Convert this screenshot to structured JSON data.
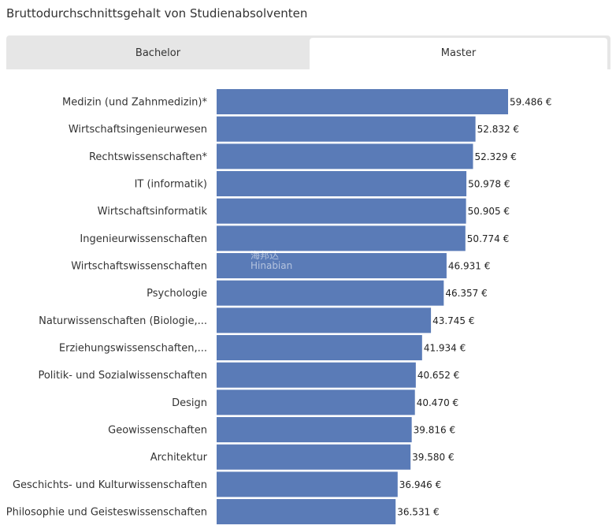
{
  "title": "Bruttodurchschnittsgehalt von Studienabsolventen",
  "tabs": [
    {
      "label": "Bachelor",
      "active": false
    },
    {
      "label": "Master",
      "active": true
    }
  ],
  "watermark": {
    "cn": "海邦达",
    "en": "Hinabian"
  },
  "colors": {
    "bar": "#5a7bb7"
  },
  "chart_data": {
    "type": "bar",
    "orientation": "horizontal",
    "title": "Bruttodurchschnittsgehalt von Studienabsolventen",
    "categories": [
      "Medizin (und Zahnmedizin)*",
      "Wirtschaftsingenieurwesen",
      "Rechtswissenschaften*",
      "IT (informatik)",
      "Wirtschaftsinformatik",
      "Ingenieurwissenschaften",
      "Wirtschaftswissenschaften",
      "Psychologie",
      "Naturwissenschaften (Biologie,...",
      "Erziehungswissenschaften,...",
      "Politik- und Sozialwissenschaften",
      "Design",
      "Geowissenschaften",
      "Architektur",
      "Geschichts- und Kulturwissenschaften",
      "Philosophie und Geisteswissenschaften"
    ],
    "values": [
      59486,
      52832,
      52329,
      50978,
      50905,
      50774,
      46931,
      46357,
      43745,
      41934,
      40652,
      40470,
      39816,
      39580,
      36946,
      36531
    ],
    "value_labels": [
      "59.486 €",
      "52.832 €",
      "52.329 €",
      "50.978 €",
      "50.905 €",
      "50.774 €",
      "46.931 €",
      "46.357 €",
      "43.745 €",
      "41.934 €",
      "40.652 €",
      "40.470 €",
      "39.816 €",
      "39.580 €",
      "36.946 €",
      "36.531 €"
    ],
    "xlim": [
      0,
      59486
    ],
    "unit": "€",
    "grid": false,
    "legend": "none"
  }
}
